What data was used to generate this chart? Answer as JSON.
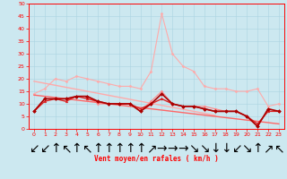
{
  "title": "",
  "xlabel": "Vent moyen/en rafales ( km/h )",
  "background_color": "#cce8f0",
  "grid_color": "#aad4e0",
  "x": [
    0,
    1,
    2,
    3,
    4,
    5,
    6,
    7,
    8,
    9,
    10,
    11,
    12,
    13,
    14,
    15,
    16,
    17,
    18,
    19,
    20,
    21,
    22,
    23
  ],
  "series": [
    {
      "name": "gust_light",
      "color": "#ffaaaa",
      "linewidth": 0.8,
      "marker": "D",
      "markersize": 1.5,
      "data": [
        14,
        16,
        20,
        19,
        21,
        20,
        19,
        18,
        17,
        17,
        16,
        23,
        46,
        30,
        25,
        23,
        17,
        16,
        16,
        15,
        15,
        16,
        9,
        10
      ]
    },
    {
      "name": "trend_gust",
      "color": "#ffaaaa",
      "linewidth": 1.0,
      "marker": null,
      "markersize": 0,
      "data": [
        19.0,
        18.2,
        17.4,
        16.6,
        15.8,
        15.0,
        14.2,
        13.4,
        12.6,
        11.8,
        11.0,
        10.2,
        9.4,
        8.6,
        7.8,
        7.0,
        6.2,
        5.4,
        null,
        null,
        null,
        null,
        null,
        null
      ]
    },
    {
      "name": "wind_light",
      "color": "#ff8888",
      "linewidth": 0.8,
      "marker": "D",
      "markersize": 1.5,
      "data": [
        7,
        12,
        12,
        12,
        13,
        13,
        10,
        10,
        10,
        10,
        7,
        11,
        15,
        10,
        9,
        9,
        9,
        8,
        7,
        7,
        5,
        1,
        8,
        7
      ]
    },
    {
      "name": "trend_wind",
      "color": "#ff6666",
      "linewidth": 1.0,
      "marker": null,
      "markersize": 0,
      "data": [
        13.5,
        13.0,
        12.5,
        12.0,
        11.5,
        11.0,
        10.5,
        10.0,
        9.5,
        9.0,
        8.5,
        8.0,
        7.5,
        7.0,
        6.5,
        6.0,
        5.5,
        5.0,
        4.5,
        4.0,
        3.5,
        3.0,
        2.5,
        2.0
      ]
    },
    {
      "name": "wind_dark1",
      "color": "#dd2222",
      "linewidth": 1.0,
      "marker": "^",
      "markersize": 2,
      "data": [
        7,
        11,
        12,
        11,
        13,
        12,
        11,
        10,
        10,
        10,
        8,
        10,
        12,
        10,
        9,
        9,
        8,
        7,
        7,
        7,
        5,
        2,
        7,
        7
      ]
    },
    {
      "name": "wind_dark2",
      "color": "#aa0000",
      "linewidth": 1.2,
      "marker": "D",
      "markersize": 2,
      "data": [
        7,
        12,
        12,
        12,
        13,
        13,
        11,
        10,
        10,
        10,
        7,
        10,
        14,
        10,
        9,
        9,
        8,
        7,
        7,
        7,
        5,
        1,
        8,
        7
      ]
    }
  ],
  "wind_dirs": [
    "↙",
    "↙",
    "↑",
    "↖",
    "↑",
    "↖",
    "↑",
    "↑",
    "↑",
    "↑",
    "↑",
    "↗",
    "→",
    "→",
    "→",
    "↘",
    "↘",
    "↓",
    "↓",
    "↙",
    "↘",
    "↑",
    "↗",
    "↖"
  ],
  "ylim": [
    0,
    50
  ],
  "xlim": [
    -0.5,
    23.5
  ],
  "yticks": [
    0,
    5,
    10,
    15,
    20,
    25,
    30,
    35,
    40,
    45,
    50
  ],
  "xticks": [
    0,
    1,
    2,
    3,
    4,
    5,
    6,
    7,
    8,
    9,
    10,
    11,
    12,
    13,
    14,
    15,
    16,
    17,
    18,
    19,
    20,
    21,
    22,
    23
  ],
  "tick_fontsize": 4.5,
  "label_fontsize": 5.5,
  "wind_fontsize": 5,
  "figsize": [
    3.2,
    2.0
  ],
  "dpi": 100
}
